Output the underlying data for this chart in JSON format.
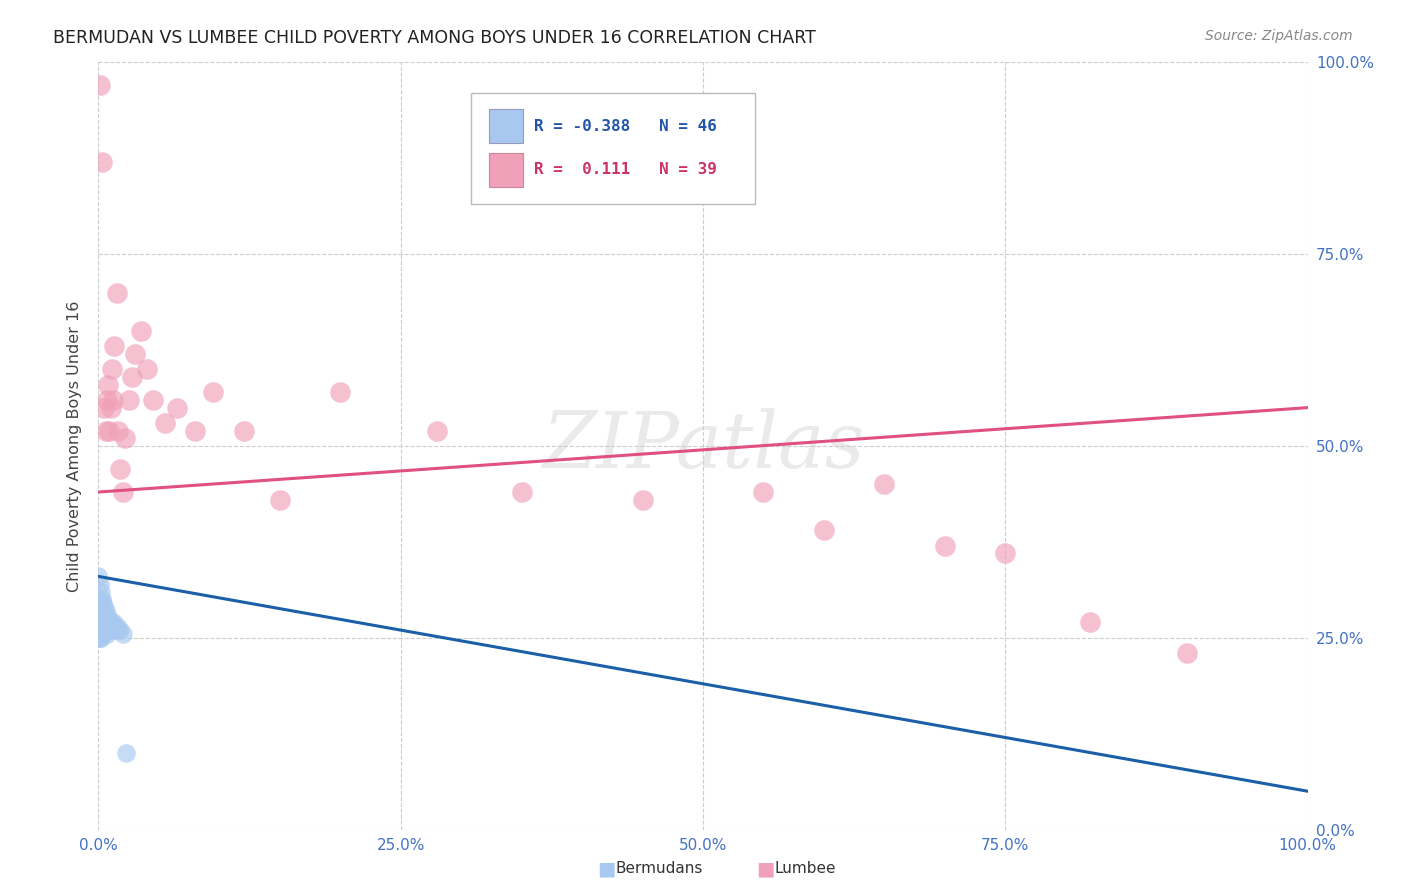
{
  "title": "BERMUDAN VS LUMBEE CHILD POVERTY AMONG BOYS UNDER 16 CORRELATION CHART",
  "source": "Source: ZipAtlas.com",
  "ylabel": "Child Poverty Among Boys Under 16",
  "watermark": "ZIPatlas",
  "xlim": [
    0,
    1.0
  ],
  "ylim": [
    0,
    1.0
  ],
  "xtick_vals": [
    0.0,
    0.25,
    0.5,
    0.75,
    1.0
  ],
  "xtick_labels": [
    "0.0%",
    "25.0%",
    "50.0%",
    "75.0%",
    "100.0%"
  ],
  "ytick_vals": [
    0.0,
    0.25,
    0.5,
    0.75,
    1.0
  ],
  "ytick_labels": [
    "0.0%",
    "25.0%",
    "50.0%",
    "75.0%",
    "100.0%"
  ],
  "tick_color": "#4472c4",
  "bermudans": {
    "color": "#a8c8f0",
    "label": "Bermudans",
    "R": -0.388,
    "N": 46,
    "line_color": "#1a5fa8",
    "line_y0": 0.33,
    "line_y1": 0.05
  },
  "lumbee": {
    "color": "#f0a0b8",
    "label": "Lumbee",
    "R": 0.111,
    "N": 39,
    "line_color": "#e05080",
    "line_y0": 0.44,
    "line_y1": 0.55
  },
  "berm_x": [
    0.0,
    0.0,
    0.0,
    0.0,
    0.0,
    0.0,
    0.001,
    0.001,
    0.001,
    0.001,
    0.001,
    0.002,
    0.002,
    0.002,
    0.002,
    0.002,
    0.003,
    0.003,
    0.003,
    0.003,
    0.004,
    0.004,
    0.004,
    0.005,
    0.005,
    0.005,
    0.006,
    0.006,
    0.007,
    0.007,
    0.007,
    0.008,
    0.008,
    0.009,
    0.009,
    0.01,
    0.01,
    0.011,
    0.012,
    0.013,
    0.014,
    0.015,
    0.016,
    0.018,
    0.02,
    0.023
  ],
  "berm_y": [
    0.33,
    0.3,
    0.29,
    0.27,
    0.26,
    0.25,
    0.32,
    0.295,
    0.28,
    0.265,
    0.25,
    0.31,
    0.295,
    0.275,
    0.265,
    0.25,
    0.3,
    0.285,
    0.27,
    0.26,
    0.295,
    0.28,
    0.265,
    0.29,
    0.275,
    0.26,
    0.285,
    0.27,
    0.28,
    0.27,
    0.255,
    0.275,
    0.265,
    0.27,
    0.26,
    0.27,
    0.26,
    0.265,
    0.27,
    0.265,
    0.26,
    0.265,
    0.26,
    0.26,
    0.255,
    0.1
  ],
  "lumb_x": [
    0.001,
    0.003,
    0.005,
    0.006,
    0.007,
    0.008,
    0.009,
    0.01,
    0.011,
    0.012,
    0.013,
    0.015,
    0.016,
    0.018,
    0.02,
    0.022,
    0.025,
    0.028,
    0.03,
    0.035,
    0.04,
    0.045,
    0.055,
    0.065,
    0.08,
    0.095,
    0.12,
    0.15,
    0.2,
    0.28,
    0.35,
    0.45,
    0.55,
    0.6,
    0.65,
    0.7,
    0.75,
    0.82,
    0.9
  ],
  "lumb_y": [
    0.97,
    0.87,
    0.55,
    0.52,
    0.56,
    0.58,
    0.52,
    0.55,
    0.6,
    0.56,
    0.63,
    0.7,
    0.52,
    0.47,
    0.44,
    0.51,
    0.56,
    0.59,
    0.62,
    0.65,
    0.6,
    0.56,
    0.53,
    0.55,
    0.52,
    0.57,
    0.52,
    0.43,
    0.57,
    0.52,
    0.44,
    0.43,
    0.44,
    0.39,
    0.45,
    0.37,
    0.36,
    0.27,
    0.23
  ]
}
